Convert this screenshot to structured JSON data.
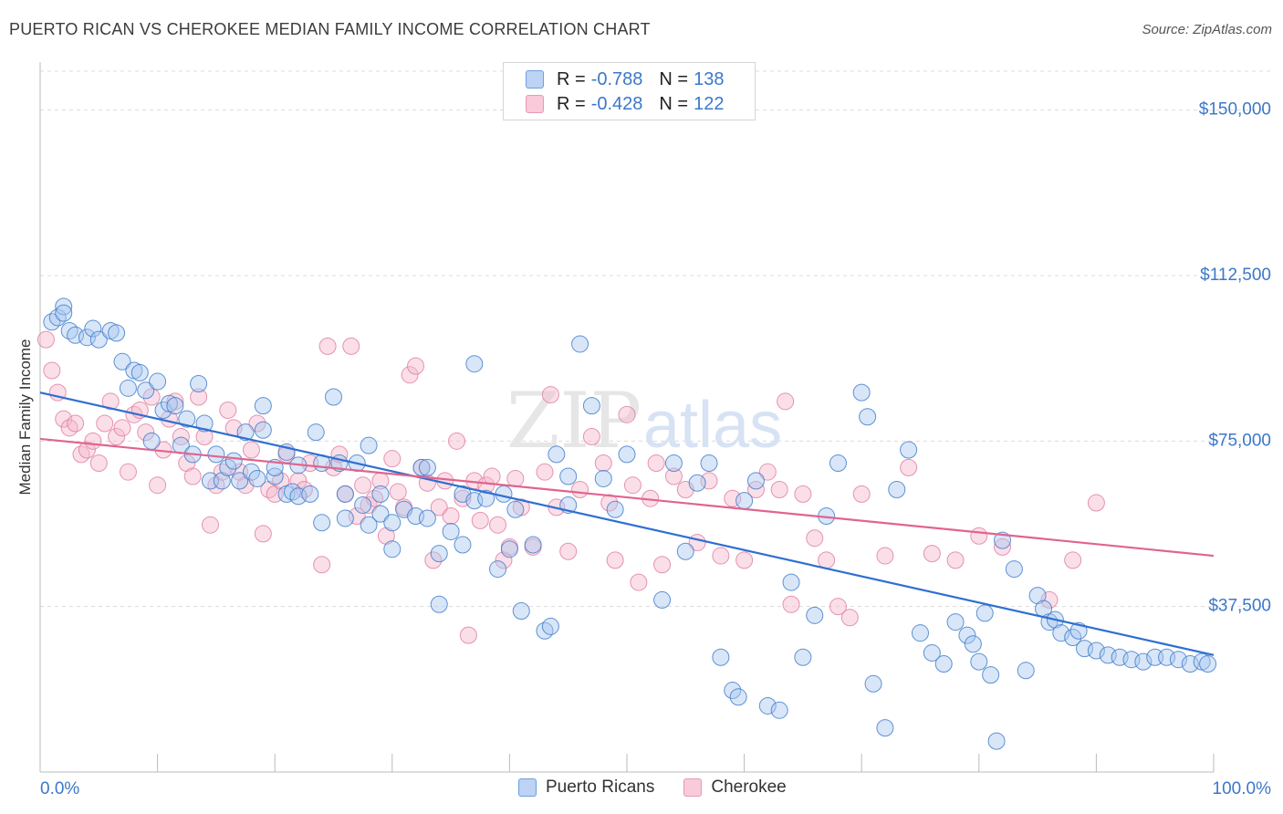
{
  "title": "PUERTO RICAN VS CHEROKEE MEDIAN FAMILY INCOME CORRELATION CHART",
  "source": "Source: ZipAtlas.com",
  "colors": {
    "blue": "#3b78c9",
    "blue_fill": "#a9c7f0",
    "blue_line": "#2f6fd1",
    "pink": "#e07aa0",
    "pink_fill": "#f5b8cc",
    "pink_line": "#e0648f"
  },
  "legend": {
    "rows": [
      {
        "r_label": "R =",
        "r_value": "-0.788",
        "n_label": "N =",
        "n_value": "138"
      },
      {
        "r_label": "R =",
        "r_value": "-0.428",
        "n_label": "N =",
        "n_value": "122"
      }
    ]
  },
  "bottom_legend": [
    "Puerto Ricans",
    "Cherokee"
  ],
  "chart_data": {
    "type": "scatter",
    "ylabel": "Median Family Income",
    "xlabel": "",
    "xlim": [
      0,
      100
    ],
    "ylim": [
      0,
      155000
    ],
    "x_tick_labels": [
      "0.0%",
      "100.0%"
    ],
    "y_ticks": [
      37500,
      75000,
      112500,
      150000
    ],
    "y_tick_labels": [
      "$37,500",
      "$75,000",
      "$112,500",
      "$150,000"
    ],
    "grid": "horizontal dashed",
    "series": [
      {
        "name": "Puerto Ricans",
        "trend": {
          "x": [
            0,
            100
          ],
          "y": [
            86000,
            26500
          ]
        },
        "points": [
          [
            1,
            102000
          ],
          [
            1.5,
            103000
          ],
          [
            2,
            105500
          ],
          [
            2,
            104000
          ],
          [
            2.5,
            100000
          ],
          [
            3,
            99000
          ],
          [
            4,
            98500
          ],
          [
            4.5,
            100500
          ],
          [
            5,
            98000
          ],
          [
            6,
            100000
          ],
          [
            6.5,
            99500
          ],
          [
            7,
            93000
          ],
          [
            7.5,
            87000
          ],
          [
            8,
            91000
          ],
          [
            8.5,
            90500
          ],
          [
            9,
            86500
          ],
          [
            9.5,
            75000
          ],
          [
            10,
            88500
          ],
          [
            10.5,
            82000
          ],
          [
            11,
            83500
          ],
          [
            11.5,
            83000
          ],
          [
            12,
            74000
          ],
          [
            12.5,
            80000
          ],
          [
            13,
            72000
          ],
          [
            13.5,
            88000
          ],
          [
            14,
            79000
          ],
          [
            14.5,
            66000
          ],
          [
            15,
            72000
          ],
          [
            15.5,
            66000
          ],
          [
            16,
            69000
          ],
          [
            16.5,
            70500
          ],
          [
            17,
            66000
          ],
          [
            17.5,
            77000
          ],
          [
            18,
            68000
          ],
          [
            18.5,
            66500
          ],
          [
            19,
            77500
          ],
          [
            19,
            83000
          ],
          [
            20,
            67000
          ],
          [
            20,
            69000
          ],
          [
            21,
            72500
          ],
          [
            21,
            63000
          ],
          [
            21.5,
            63500
          ],
          [
            22,
            62500
          ],
          [
            22,
            69500
          ],
          [
            23,
            63000
          ],
          [
            23.5,
            77000
          ],
          [
            24,
            56500
          ],
          [
            24,
            70000
          ],
          [
            25,
            85000
          ],
          [
            25.5,
            70000
          ],
          [
            26,
            57500
          ],
          [
            26,
            63000
          ],
          [
            27,
            70000
          ],
          [
            27.5,
            60500
          ],
          [
            28,
            56000
          ],
          [
            28,
            74000
          ],
          [
            29,
            58500
          ],
          [
            29,
            63000
          ],
          [
            30,
            56500
          ],
          [
            30,
            50500
          ],
          [
            31,
            59500
          ],
          [
            32,
            58000
          ],
          [
            32.5,
            69000
          ],
          [
            33,
            57500
          ],
          [
            33,
            69000
          ],
          [
            34,
            49500
          ],
          [
            34,
            38000
          ],
          [
            35,
            54500
          ],
          [
            36,
            51500
          ],
          [
            36,
            63000
          ],
          [
            37,
            92500
          ],
          [
            37,
            61500
          ],
          [
            38,
            62000
          ],
          [
            39,
            46000
          ],
          [
            39.5,
            63000
          ],
          [
            40,
            50500
          ],
          [
            40.5,
            59500
          ],
          [
            41,
            36500
          ],
          [
            42,
            51500
          ],
          [
            43,
            32000
          ],
          [
            43.5,
            33000
          ],
          [
            44,
            72000
          ],
          [
            45,
            60500
          ],
          [
            45,
            67000
          ],
          [
            46,
            97000
          ],
          [
            47,
            83000
          ],
          [
            48,
            66500
          ],
          [
            49,
            59500
          ],
          [
            50,
            72000
          ],
          [
            53,
            39000
          ],
          [
            54,
            70000
          ],
          [
            55,
            50000
          ],
          [
            56,
            65500
          ],
          [
            57,
            70000
          ],
          [
            58,
            26000
          ],
          [
            59,
            18500
          ],
          [
            59.5,
            17000
          ],
          [
            60,
            61500
          ],
          [
            61,
            66000
          ],
          [
            62,
            15000
          ],
          [
            63,
            14000
          ],
          [
            64,
            43000
          ],
          [
            65,
            26000
          ],
          [
            66,
            35500
          ],
          [
            67,
            58000
          ],
          [
            68,
            70000
          ],
          [
            70,
            86000
          ],
          [
            70.5,
            80500
          ],
          [
            71,
            20000
          ],
          [
            72,
            10000
          ],
          [
            73,
            64000
          ],
          [
            74,
            73000
          ],
          [
            75,
            31500
          ],
          [
            76,
            27000
          ],
          [
            77,
            24500
          ],
          [
            78,
            34000
          ],
          [
            79,
            31000
          ],
          [
            79.5,
            29000
          ],
          [
            80,
            25000
          ],
          [
            80.5,
            36000
          ],
          [
            81,
            22000
          ],
          [
            81.5,
            7000
          ],
          [
            82,
            52500
          ],
          [
            83,
            46000
          ],
          [
            84,
            23000
          ],
          [
            85,
            40000
          ],
          [
            85.5,
            37000
          ],
          [
            86,
            34000
          ],
          [
            86.5,
            34500
          ],
          [
            87,
            31500
          ],
          [
            88,
            30500
          ],
          [
            88.5,
            32000
          ],
          [
            89,
            28000
          ],
          [
            90,
            27500
          ],
          [
            91,
            26500
          ],
          [
            92,
            26000
          ],
          [
            93,
            25500
          ],
          [
            94,
            25000
          ],
          [
            95,
            26000
          ],
          [
            96,
            26000
          ],
          [
            97,
            25500
          ],
          [
            98,
            24500
          ],
          [
            99,
            25000
          ],
          [
            99.5,
            24500
          ]
        ]
      },
      {
        "name": "Cherokee",
        "trend": {
          "x": [
            0,
            100
          ],
          "y": [
            75500,
            49000
          ]
        },
        "points": [
          [
            0.5,
            98000
          ],
          [
            1,
            91000
          ],
          [
            1.5,
            86000
          ],
          [
            2,
            80000
          ],
          [
            2.5,
            78000
          ],
          [
            3,
            79000
          ],
          [
            3.5,
            72000
          ],
          [
            4,
            73000
          ],
          [
            4.5,
            75000
          ],
          [
            5,
            70000
          ],
          [
            5.5,
            79000
          ],
          [
            6,
            84000
          ],
          [
            6.5,
            76000
          ],
          [
            7,
            78000
          ],
          [
            7.5,
            68000
          ],
          [
            8,
            81000
          ],
          [
            8.5,
            82000
          ],
          [
            9,
            77000
          ],
          [
            9.5,
            85000
          ],
          [
            10,
            65000
          ],
          [
            10.5,
            73000
          ],
          [
            11,
            80000
          ],
          [
            11.5,
            84000
          ],
          [
            12,
            76000
          ],
          [
            12.5,
            70000
          ],
          [
            13,
            67000
          ],
          [
            13.5,
            85000
          ],
          [
            14,
            76000
          ],
          [
            14.5,
            56000
          ],
          [
            15,
            65000
          ],
          [
            15.5,
            68000
          ],
          [
            16,
            82000
          ],
          [
            16.5,
            78000
          ],
          [
            17,
            68000
          ],
          [
            17.5,
            65000
          ],
          [
            18,
            73000
          ],
          [
            18.5,
            79000
          ],
          [
            19,
            54000
          ],
          [
            19.5,
            64000
          ],
          [
            20,
            63000
          ],
          [
            20.5,
            66000
          ],
          [
            21,
            72000
          ],
          [
            22,
            66000
          ],
          [
            22.5,
            64000
          ],
          [
            23,
            70000
          ],
          [
            24,
            47000
          ],
          [
            24.5,
            96500
          ],
          [
            25,
            69000
          ],
          [
            25.5,
            72000
          ],
          [
            26,
            63000
          ],
          [
            26.5,
            96500
          ],
          [
            27,
            58000
          ],
          [
            27.5,
            65000
          ],
          [
            28,
            60500
          ],
          [
            28.5,
            62000
          ],
          [
            29,
            66000
          ],
          [
            29.5,
            53500
          ],
          [
            30,
            71000
          ],
          [
            30.5,
            63500
          ],
          [
            31,
            60000
          ],
          [
            31.5,
            90000
          ],
          [
            32,
            92000
          ],
          [
            32.5,
            69000
          ],
          [
            33,
            65500
          ],
          [
            33.5,
            48000
          ],
          [
            34,
            60000
          ],
          [
            34.5,
            66000
          ],
          [
            35,
            58000
          ],
          [
            35.5,
            75000
          ],
          [
            36,
            62000
          ],
          [
            36.5,
            31000
          ],
          [
            37,
            66000
          ],
          [
            37.5,
            57000
          ],
          [
            38,
            65000
          ],
          [
            38.5,
            67000
          ],
          [
            39,
            56000
          ],
          [
            39.5,
            48000
          ],
          [
            40,
            51000
          ],
          [
            40.5,
            66500
          ],
          [
            41,
            60000
          ],
          [
            42,
            51000
          ],
          [
            43,
            68000
          ],
          [
            43.5,
            85500
          ],
          [
            44,
            60000
          ],
          [
            45,
            50000
          ],
          [
            46,
            64000
          ],
          [
            47,
            76000
          ],
          [
            48,
            70000
          ],
          [
            48.5,
            61000
          ],
          [
            49,
            48000
          ],
          [
            50,
            81000
          ],
          [
            50.5,
            65000
          ],
          [
            51,
            43000
          ],
          [
            52,
            62000
          ],
          [
            52.5,
            70000
          ],
          [
            53,
            47000
          ],
          [
            54,
            67000
          ],
          [
            55,
            64000
          ],
          [
            56,
            52000
          ],
          [
            57,
            66000
          ],
          [
            58,
            49000
          ],
          [
            59,
            62000
          ],
          [
            60,
            48000
          ],
          [
            61,
            64000
          ],
          [
            62,
            68000
          ],
          [
            63,
            64000
          ],
          [
            63.5,
            84000
          ],
          [
            64,
            38000
          ],
          [
            65,
            63000
          ],
          [
            66,
            53000
          ],
          [
            67,
            48000
          ],
          [
            68,
            37500
          ],
          [
            69,
            35000
          ],
          [
            70,
            63000
          ],
          [
            72,
            49000
          ],
          [
            74,
            69000
          ],
          [
            76,
            49500
          ],
          [
            78,
            48000
          ],
          [
            80,
            53500
          ],
          [
            82,
            51000
          ],
          [
            86,
            39000
          ],
          [
            88,
            48000
          ],
          [
            90,
            61000
          ]
        ]
      }
    ]
  }
}
